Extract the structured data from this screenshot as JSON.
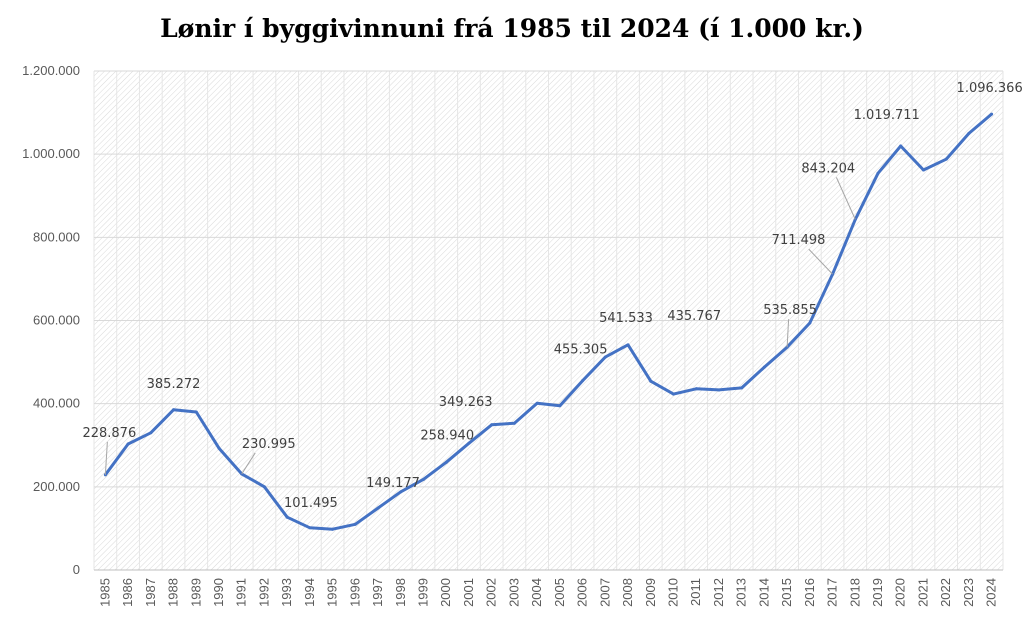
{
  "chart_data": {
    "type": "line",
    "title": "Lønir í byggivinnuni frá 1985 til 2024 (í 1.000 kr.)",
    "xlabel": "",
    "ylabel": "",
    "ylim": [
      0,
      1200000
    ],
    "yticks": [
      0,
      200000,
      400000,
      600000,
      800000,
      1000000,
      1200000
    ],
    "ytick_labels": [
      "0",
      "200.000",
      "400.000",
      "600.000",
      "800.000",
      "1.000.000",
      "1.200.000"
    ],
    "grid": true,
    "legend": "none",
    "x": [
      "1985",
      "1986",
      "1987",
      "1988",
      "1989",
      "1990",
      "1991",
      "1992",
      "1993",
      "1994",
      "1995",
      "1996",
      "1997",
      "1998",
      "1999",
      "2000",
      "2001",
      "2002",
      "2003",
      "2004",
      "2005",
      "2006",
      "2007",
      "2008",
      "2009",
      "2010",
      "2011",
      "2012",
      "2013",
      "2014",
      "2015",
      "2016",
      "2017",
      "2018",
      "2019",
      "2020",
      "2021",
      "2022",
      "2023",
      "2024"
    ],
    "series": [
      {
        "name": "Lønir",
        "color": "#4472C4",
        "values": [
          228876,
          303000,
          330000,
          385272,
          380000,
          293000,
          230995,
          200000,
          127000,
          101495,
          98000,
          110000,
          149177,
          188000,
          218000,
          258940,
          305000,
          349263,
          353000,
          401000,
          395000,
          455305,
          512000,
          541533,
          454000,
          423000,
          435767,
          433000,
          438000,
          488000,
          535855,
          594000,
          711498,
          843204,
          954000,
          1019711,
          962000,
          988000,
          1050000,
          1096366
        ]
      }
    ],
    "data_labels": [
      {
        "x": "1985",
        "text": "228.876"
      },
      {
        "x": "1988",
        "text": "385.272"
      },
      {
        "x": "1991",
        "text": "230.995"
      },
      {
        "x": "1994",
        "text": "101.495"
      },
      {
        "x": "1997",
        "text": "149.177"
      },
      {
        "x": "2000",
        "text": "258.940"
      },
      {
        "x": "2002",
        "text": "349.263"
      },
      {
        "x": "2006",
        "text": "455.305"
      },
      {
        "x": "2008",
        "text": "541.533"
      },
      {
        "x": "2011",
        "text": "435.767"
      },
      {
        "x": "2015",
        "text": "535.855"
      },
      {
        "x": "2017",
        "text": "711.498"
      },
      {
        "x": "2018",
        "text": "843.204"
      },
      {
        "x": "2020",
        "text": "1.019.711"
      },
      {
        "x": "2024",
        "text": "1.096.366"
      }
    ]
  }
}
